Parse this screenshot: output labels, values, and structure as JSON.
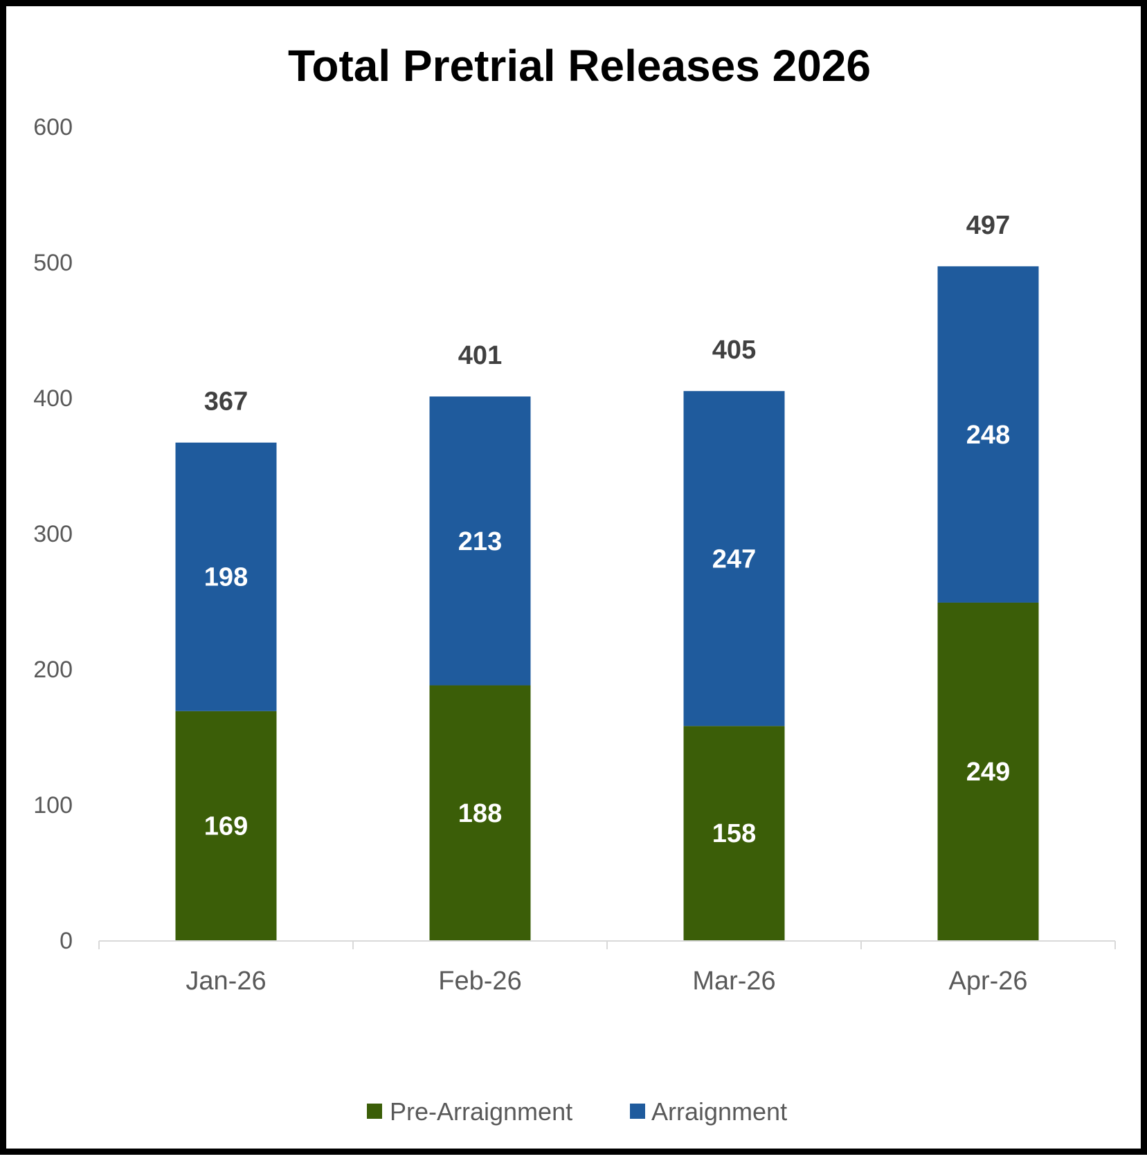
{
  "chart_data": {
    "type": "bar",
    "stacked": true,
    "title": "Total Pretrial Releases 2026",
    "xlabel": "",
    "ylabel": "",
    "categories": [
      "Jan-26",
      "Feb-26",
      "Mar-26",
      "Apr-26"
    ],
    "series": [
      {
        "name": "Pre-Arraignment",
        "values": [
          169,
          188,
          158,
          249
        ],
        "color": "#3b5e08"
      },
      {
        "name": "Arraignment",
        "values": [
          198,
          213,
          247,
          248
        ],
        "color": "#1f5b9d"
      }
    ],
    "totals": [
      367,
      401,
      405,
      497
    ],
    "ylim": [
      0,
      600
    ],
    "yticks": [
      0,
      100,
      200,
      300,
      400,
      500,
      600
    ],
    "grid": false,
    "legend_position": "bottom"
  }
}
